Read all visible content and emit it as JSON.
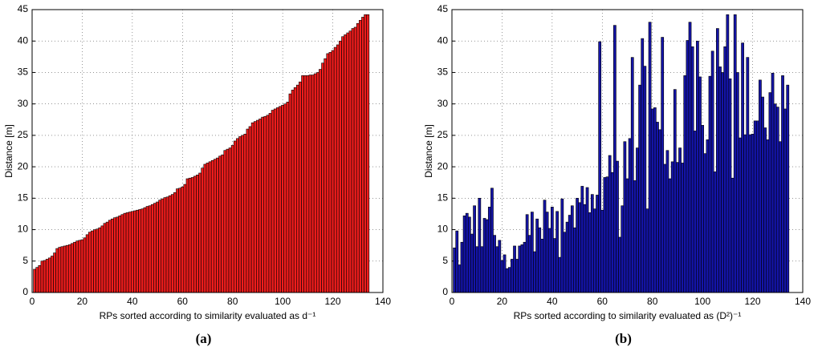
{
  "chart_data": [
    {
      "type": "bar",
      "caption": "(a)",
      "xlabel": "RPs sorted according to similarity evaluated as d⁻¹",
      "ylabel": "Distance [m]",
      "color": "#ee1c1c",
      "edgecolor": "#000000",
      "grid": true,
      "xlim": [
        0,
        140
      ],
      "ylim": [
        0,
        45
      ],
      "xticks": [
        0,
        20,
        40,
        60,
        80,
        100,
        120,
        140
      ],
      "yticks": [
        0,
        5,
        10,
        15,
        20,
        25,
        30,
        35,
        40,
        45
      ],
      "x": [
        1,
        2,
        3,
        4,
        5,
        6,
        7,
        8,
        9,
        10,
        11,
        12,
        13,
        14,
        15,
        16,
        17,
        18,
        19,
        20,
        21,
        22,
        23,
        24,
        25,
        26,
        27,
        28,
        29,
        30,
        31,
        32,
        33,
        34,
        35,
        36,
        37,
        38,
        39,
        40,
        41,
        42,
        43,
        44,
        45,
        46,
        47,
        48,
        49,
        50,
        51,
        52,
        53,
        54,
        55,
        56,
        57,
        58,
        59,
        60,
        61,
        62,
        63,
        64,
        65,
        66,
        67,
        68,
        69,
        70,
        71,
        72,
        73,
        74,
        75,
        76,
        77,
        78,
        79,
        80,
        81,
        82,
        83,
        84,
        85,
        86,
        87,
        88,
        89,
        90,
        91,
        92,
        93,
        94,
        95,
        96,
        97,
        98,
        99,
        100,
        101,
        102,
        103,
        104,
        105,
        106,
        107,
        108,
        109,
        110,
        111,
        112,
        113,
        114,
        115,
        116,
        117,
        118,
        119,
        120,
        121,
        122,
        123,
        124,
        125,
        126,
        127,
        128,
        129,
        130,
        131,
        132,
        133,
        134
      ],
      "values": [
        3.7,
        4.0,
        4.3,
        5.0,
        5.1,
        5.3,
        5.5,
        5.8,
        6.3,
        7.0,
        7.2,
        7.3,
        7.4,
        7.5,
        7.6,
        7.8,
        8.0,
        8.2,
        8.3,
        8.4,
        8.7,
        9.2,
        9.6,
        9.8,
        10.0,
        10.1,
        10.3,
        10.6,
        11.0,
        11.2,
        11.5,
        11.7,
        11.9,
        12.0,
        12.2,
        12.4,
        12.6,
        12.7,
        12.8,
        12.9,
        13.0,
        13.1,
        13.2,
        13.3,
        13.5,
        13.7,
        13.8,
        14.0,
        14.2,
        14.4,
        14.7,
        14.9,
        15.1,
        15.2,
        15.4,
        15.6,
        15.9,
        16.5,
        16.6,
        16.8,
        17.2,
        18.1,
        18.2,
        18.3,
        18.5,
        18.7,
        19.0,
        19.8,
        20.4,
        20.6,
        20.8,
        21.0,
        21.2,
        21.4,
        21.7,
        21.9,
        22.6,
        22.8,
        23.0,
        23.4,
        24.1,
        24.5,
        24.8,
        25.0,
        25.2,
        26.0,
        26.4,
        27.0,
        27.2,
        27.4,
        27.6,
        27.9,
        28.0,
        28.2,
        28.5,
        29.0,
        29.2,
        29.4,
        29.6,
        29.8,
        30.0,
        30.3,
        31.6,
        32.2,
        32.6,
        33.0,
        33.5,
        34.5,
        34.5,
        34.5,
        34.6,
        34.6,
        34.8,
        35.0,
        35.5,
        36.5,
        37.2,
        38.0,
        38.2,
        38.5,
        39.0,
        39.4,
        40.0,
        40.7,
        41.0,
        41.3,
        41.6,
        42.0,
        42.2,
        42.8,
        43.3,
        43.8,
        44.2,
        44.2
      ]
    },
    {
      "type": "bar",
      "caption": "(b)",
      "xlabel": "RPs sorted according to similarity evaluated as (D²)⁻¹",
      "ylabel": "Distance [m]",
      "color": "#1414a8",
      "edgecolor": "#000000",
      "grid": true,
      "xlim": [
        0,
        140
      ],
      "ylim": [
        0,
        45
      ],
      "xticks": [
        0,
        20,
        40,
        60,
        80,
        100,
        120,
        140
      ],
      "yticks": [
        0,
        5,
        10,
        15,
        20,
        25,
        30,
        35,
        40,
        45
      ],
      "x": [
        1,
        2,
        3,
        4,
        5,
        6,
        7,
        8,
        9,
        10,
        11,
        12,
        13,
        14,
        15,
        16,
        17,
        18,
        19,
        20,
        21,
        22,
        23,
        24,
        25,
        26,
        27,
        28,
        29,
        30,
        31,
        32,
        33,
        34,
        35,
        36,
        37,
        38,
        39,
        40,
        41,
        42,
        43,
        44,
        45,
        46,
        47,
        48,
        49,
        50,
        51,
        52,
        53,
        54,
        55,
        56,
        57,
        58,
        59,
        60,
        61,
        62,
        63,
        64,
        65,
        66,
        67,
        68,
        69,
        70,
        71,
        72,
        73,
        74,
        75,
        76,
        77,
        78,
        79,
        80,
        81,
        82,
        83,
        84,
        85,
        86,
        87,
        88,
        89,
        90,
        91,
        92,
        93,
        94,
        95,
        96,
        97,
        98,
        99,
        100,
        101,
        102,
        103,
        104,
        105,
        106,
        107,
        108,
        109,
        110,
        111,
        112,
        113,
        114,
        115,
        116,
        117,
        118,
        119,
        120,
        121,
        122,
        123,
        124,
        125,
        126,
        127,
        128,
        129,
        130,
        131,
        132,
        133,
        134
      ],
      "values": [
        7.1,
        9.8,
        4.4,
        8.0,
        12.2,
        12.6,
        12.0,
        9.3,
        13.8,
        7.3,
        15.0,
        7.3,
        11.8,
        11.6,
        13.6,
        16.6,
        9.1,
        7.3,
        8.3,
        5.1,
        6.0,
        3.8,
        4.0,
        5.3,
        7.4,
        5.3,
        7.4,
        7.6,
        8.0,
        12.4,
        9.1,
        12.8,
        6.5,
        11.7,
        10.3,
        8.5,
        14.7,
        12.8,
        10.2,
        13.6,
        8.6,
        12.9,
        5.6,
        14.9,
        9.6,
        11.2,
        12.3,
        13.8,
        10.3,
        15.0,
        14.3,
        16.9,
        14.0,
        16.7,
        12.7,
        15.6,
        13.3,
        15.5,
        39.9,
        13.1,
        18.3,
        18.4,
        21.8,
        19.1,
        42.5,
        20.9,
        8.8,
        13.8,
        24.0,
        18.1,
        24.5,
        37.4,
        17.8,
        23.0,
        33.0,
        40.4,
        36.0,
        13.3,
        43.0,
        29.2,
        29.4,
        27.1,
        25.9,
        40.6,
        20.4,
        22.6,
        18.1,
        20.8,
        32.3,
        20.7,
        23.0,
        20.6,
        34.5,
        40.1,
        43.0,
        39.1,
        25.7,
        40.0,
        34.3,
        26.6,
        22.1,
        24.3,
        34.4,
        38.4,
        19.2,
        42.0,
        35.9,
        35.0,
        39.1,
        44.2,
        34.0,
        18.2,
        44.2,
        35.0,
        24.6,
        39.7,
        25.1,
        37.4,
        25.1,
        25.2,
        27.3,
        27.3,
        33.8,
        31.1,
        26.2,
        24.3,
        31.8,
        34.9,
        30.0,
        29.5,
        24.0,
        34.5,
        29.2,
        33.0
      ]
    }
  ]
}
